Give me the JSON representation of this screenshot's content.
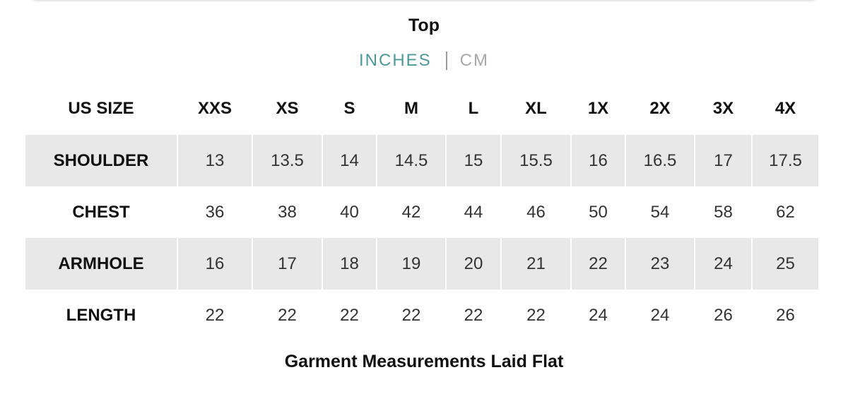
{
  "header": {
    "title": "Top",
    "units": [
      "INCHES",
      "CM"
    ]
  },
  "table": {
    "columns": [
      "US SIZE",
      "XXS",
      "XS",
      "S",
      "M",
      "L",
      "XL",
      "1X",
      "2X",
      "3X",
      "4X"
    ],
    "rows": [
      [
        "SHOULDER",
        13,
        13.5,
        14,
        14.5,
        15,
        15.5,
        16,
        16.5,
        17,
        17.5
      ],
      [
        "CHEST",
        36,
        38,
        40,
        42,
        44,
        46,
        50,
        54,
        58,
        62
      ],
      [
        "ARMHOLE",
        16,
        17,
        18,
        19,
        20,
        21,
        22,
        23,
        24,
        25
      ],
      [
        "LENGTH",
        22,
        22,
        22,
        22,
        22,
        22,
        24,
        24,
        26,
        26
      ]
    ]
  },
  "footer": "Garment Measurements Laid Flat"
}
